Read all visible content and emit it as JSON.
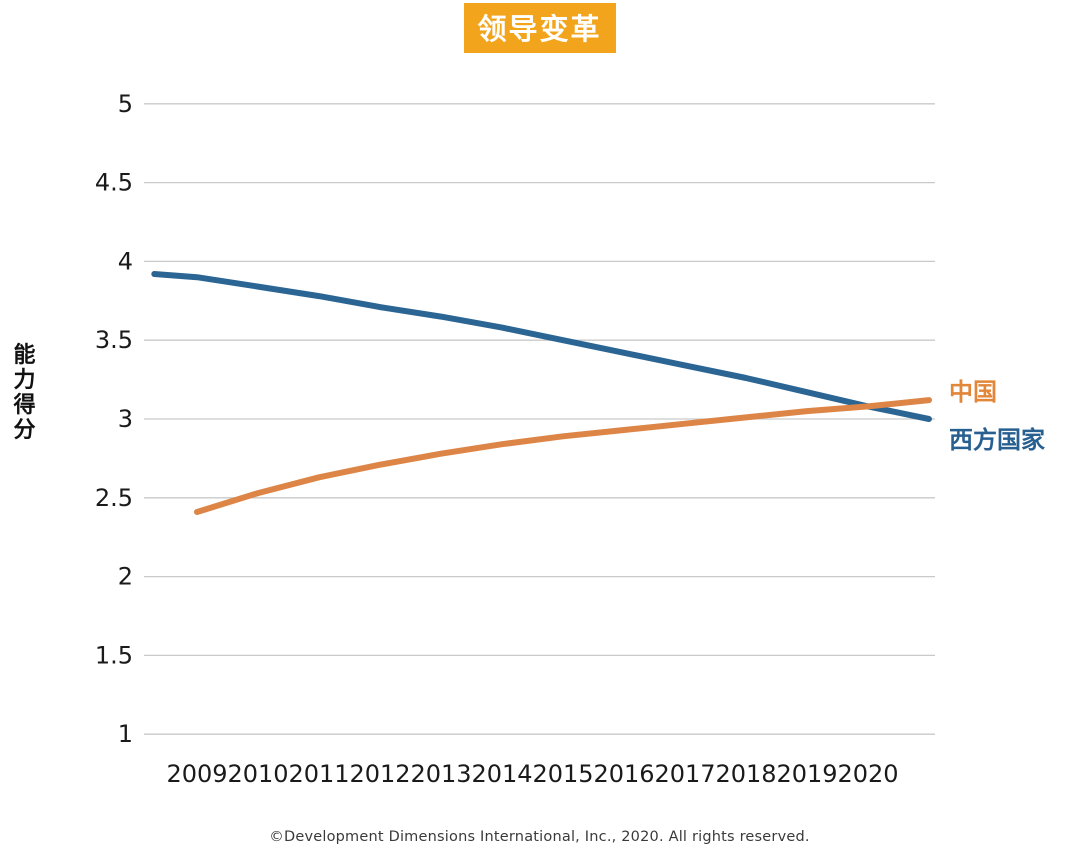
{
  "title": {
    "text": "领导变革",
    "bg_color": "#F2A51C",
    "text_color": "#FFFFFF"
  },
  "y_axis": {
    "title": "能力得分"
  },
  "legend": [
    {
      "label": "中国",
      "color": "#E2863A"
    },
    {
      "label": "西方国家",
      "color": "#275F90"
    }
  ],
  "footer": {
    "text": "©Development Dimensions International, Inc., 2020. All rights reserved."
  },
  "colors": {
    "gridline": "#C9C9C9",
    "axis_text": "#1A1A1A",
    "china_line": "#DD8546",
    "western_line": "#2B6594"
  },
  "chart_data": {
    "type": "line",
    "title": "领导变革",
    "xlabel": "",
    "ylabel": "能力得分",
    "ylim": [
      1,
      5
    ],
    "yticks": [
      1,
      1.5,
      2,
      2.5,
      3,
      3.5,
      4,
      4.5,
      5
    ],
    "grid": "horizontal",
    "legend_position": "right",
    "categories": [
      2009,
      2010,
      2011,
      2012,
      2013,
      2014,
      2015,
      2016,
      2017,
      2018,
      2019,
      2020
    ],
    "series": [
      {
        "name": "西方国家",
        "color": "#2B6594",
        "x": [
          2008.3,
          2009,
          2010,
          2011,
          2012,
          2013,
          2014,
          2015,
          2016,
          2017,
          2018,
          2019,
          2020,
          2021
        ],
        "values": [
          3.92,
          3.9,
          3.84,
          3.78,
          3.71,
          3.65,
          3.58,
          3.5,
          3.42,
          3.34,
          3.26,
          3.17,
          3.08,
          3.0
        ]
      },
      {
        "name": "中国",
        "color": "#DD8546",
        "x": [
          2009,
          2010,
          2011,
          2012,
          2013,
          2014,
          2015,
          2016,
          2017,
          2018,
          2019,
          2020,
          2021
        ],
        "values": [
          2.41,
          2.53,
          2.63,
          2.71,
          2.78,
          2.84,
          2.89,
          2.93,
          2.97,
          3.01,
          3.05,
          3.08,
          3.12
        ]
      }
    ]
  }
}
